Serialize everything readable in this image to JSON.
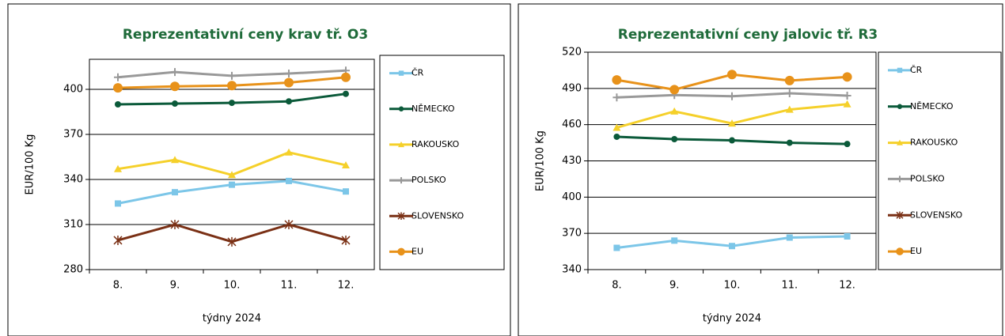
{
  "chart_data": [
    {
      "type": "line",
      "title": "Reprezentativní  ceny krav tř. O3",
      "xlabel": "týdny 2024",
      "ylabel": "EUR/100 Kg",
      "categories": [
        "8.",
        "9.",
        "10.",
        "11.",
        "12."
      ],
      "ylim": [
        280,
        420
      ],
      "yticks": [
        280,
        310,
        340,
        370,
        400
      ],
      "grid": true,
      "series": [
        {
          "name": "ČR",
          "color": "#7cc6e8",
          "marker": "square",
          "values": [
            324,
            331.5,
            336.5,
            339,
            332
          ]
        },
        {
          "name": "NĚMECKO",
          "color": "#0b5a3a",
          "marker": "dot",
          "values": [
            390,
            390.5,
            391,
            392,
            397
          ]
        },
        {
          "name": "RAKOUSKO",
          "color": "#f5d02a",
          "marker": "triangle",
          "values": [
            347,
            353,
            343,
            358,
            349.5
          ]
        },
        {
          "name": "POLSKO",
          "color": "#999999",
          "marker": "plus",
          "values": [
            408,
            411.5,
            409,
            410.5,
            412.5
          ]
        },
        {
          "name": "SLOVENSKO",
          "color": "#7a3015",
          "marker": "star",
          "values": [
            299.5,
            310,
            298.5,
            310,
            299.5
          ]
        },
        {
          "name": "EU",
          "color": "#e8921a",
          "marker": "circle",
          "values": [
            401,
            402,
            402.5,
            404.5,
            408
          ]
        }
      ]
    },
    {
      "type": "line",
      "title": "Reprezentativní  ceny jalovic tř. R3",
      "xlabel": "týdny 2024",
      "ylabel": "EUR/100 Kg",
      "categories": [
        "8.",
        "9.",
        "10.",
        "11.",
        "12."
      ],
      "ylim": [
        340,
        520
      ],
      "yticks": [
        340,
        370,
        400,
        430,
        460,
        490,
        520
      ],
      "grid": true,
      "series": [
        {
          "name": "ČR",
          "color": "#7cc6e8",
          "marker": "square",
          "values": [
            358,
            364,
            359.5,
            366.5,
            367.5
          ]
        },
        {
          "name": "NĚMECKO",
          "color": "#0b5a3a",
          "marker": "dot",
          "values": [
            450,
            448,
            447,
            445,
            444
          ]
        },
        {
          "name": "RAKOUSKO",
          "color": "#f5d02a",
          "marker": "triangle",
          "values": [
            457.5,
            471,
            461,
            472.5,
            477
          ]
        },
        {
          "name": "POLSKO",
          "color": "#999999",
          "marker": "plus",
          "values": [
            482.5,
            484.5,
            483.5,
            486,
            484
          ]
        },
        {
          "name": "SLOVENSKO",
          "color": "#7a3015",
          "marker": "star",
          "values": [
            null,
            null,
            null,
            null,
            null
          ]
        },
        {
          "name": "EU",
          "color": "#e8921a",
          "marker": "circle",
          "values": [
            497,
            489,
            501.5,
            496.5,
            499.5
          ]
        }
      ]
    }
  ]
}
